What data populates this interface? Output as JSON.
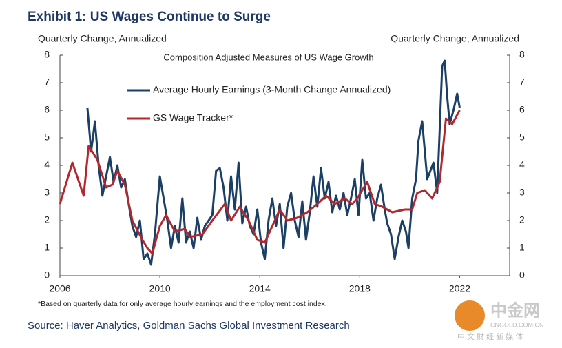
{
  "chart_data": {
    "type": "line",
    "title": "Exhibit 1: US Wages Continue to Surge",
    "subtitle": "Composition Adjusted Measures of US Wage Growth",
    "y_label": "Quarterly Change, Annualized",
    "y2_label": "Quarterly Change, Annualized",
    "footnote": "*Based on quarterly data for only average hourly earnings and the employment cost index.",
    "source": "Source: Haver Analytics, Goldman Sachs Global Investment Research",
    "watermark": [
      "中金网",
      "CNGOLD.COM.CN",
      "中 文 财 经 新 媒 体"
    ],
    "xlim": [
      2006,
      2024
    ],
    "xticks": [
      2006,
      2010,
      2014,
      2018,
      2022
    ],
    "ylim": [
      0,
      8
    ],
    "yticks": [
      0,
      1,
      2,
      3,
      4,
      5,
      6,
      7,
      8
    ],
    "y2lim": [
      0,
      8
    ],
    "y2ticks": [
      0,
      1,
      2,
      3,
      4,
      5,
      6,
      7,
      8
    ],
    "series": [
      {
        "name": "Average Hourly Earnings (3-Month Change Annualized)",
        "color": "#1c3f66",
        "x": [
          2007.1,
          2007.25,
          2007.4,
          2007.55,
          2007.7,
          2007.85,
          2008.0,
          2008.15,
          2008.3,
          2008.45,
          2008.6,
          2008.75,
          2008.9,
          2009.05,
          2009.2,
          2009.35,
          2009.5,
          2009.65,
          2009.8,
          2010.0,
          2010.15,
          2010.3,
          2010.45,
          2010.6,
          2010.75,
          2010.9,
          2011.05,
          2011.2,
          2011.35,
          2011.5,
          2011.65,
          2011.8,
          2011.95,
          2012.1,
          2012.25,
          2012.4,
          2012.55,
          2012.7,
          2012.85,
          2013.0,
          2013.15,
          2013.3,
          2013.45,
          2013.6,
          2013.75,
          2013.9,
          2014.05,
          2014.2,
          2014.35,
          2014.5,
          2014.65,
          2014.8,
          2014.95,
          2015.1,
          2015.25,
          2015.4,
          2015.55,
          2015.7,
          2015.85,
          2016.0,
          2016.15,
          2016.3,
          2016.45,
          2016.6,
          2016.75,
          2016.9,
          2017.05,
          2017.2,
          2017.35,
          2017.5,
          2017.65,
          2017.8,
          2017.95,
          2018.1,
          2018.25,
          2018.4,
          2018.55,
          2018.7,
          2018.85,
          2019.0,
          2019.1,
          2019.25,
          2019.4,
          2019.55,
          2019.7,
          2019.85,
          2019.95,
          2020.1,
          2020.25,
          2020.35,
          2020.5,
          2020.7,
          2020.95,
          2021.1,
          2021.3,
          2021.4,
          2021.5,
          2021.6,
          2021.75,
          2021.9,
          2022.0
        ],
        "values": [
          6.1,
          4.5,
          5.6,
          4.0,
          2.9,
          3.6,
          4.3,
          3.4,
          4.0,
          3.2,
          3.5,
          2.6,
          1.8,
          1.4,
          2.0,
          0.6,
          0.8,
          0.4,
          1.5,
          3.6,
          2.8,
          2.0,
          1.0,
          1.8,
          1.2,
          2.8,
          1.2,
          1.6,
          1.0,
          2.1,
          1.3,
          1.8,
          2.0,
          2.2,
          3.8,
          3.9,
          3.2,
          2.0,
          3.6,
          2.4,
          4.1,
          1.9,
          2.5,
          1.8,
          1.5,
          2.4,
          1.2,
          0.6,
          2.0,
          2.8,
          1.8,
          2.6,
          1.0,
          2.5,
          3.0,
          2.0,
          1.4,
          2.7,
          1.3,
          2.3,
          3.6,
          2.5,
          3.9,
          2.8,
          3.4,
          2.3,
          2.9,
          2.4,
          3.0,
          2.2,
          2.8,
          3.5,
          2.2,
          4.2,
          2.8,
          3.0,
          2.0,
          2.8,
          3.3,
          2.4,
          1.9,
          1.5,
          0.6,
          1.4,
          2.0,
          1.6,
          1.0,
          2.8,
          3.5,
          4.9,
          5.6,
          3.5,
          4.1,
          3.0,
          7.6,
          7.8,
          6.5,
          5.5,
          6.0,
          6.6,
          6.1
        ]
      },
      {
        "name": "GS Wage Tracker*",
        "color": "#b3282d",
        "x": [
          2006.0,
          2006.5,
          2006.95,
          2007.15,
          2007.5,
          2007.85,
          2008.1,
          2008.3,
          2008.6,
          2008.9,
          2009.3,
          2009.5,
          2009.7,
          2010.0,
          2010.25,
          2010.6,
          2011.0,
          2011.2,
          2011.7,
          2012.1,
          2012.6,
          2012.85,
          2013.2,
          2013.55,
          2013.9,
          2014.2,
          2014.5,
          2014.8,
          2015.1,
          2015.5,
          2015.9,
          2016.3,
          2016.65,
          2017.0,
          2017.4,
          2017.7,
          2017.9,
          2018.3,
          2018.6,
          2018.9,
          2019.3,
          2019.8,
          2020.1,
          2020.3,
          2020.6,
          2020.9,
          2021.2,
          2021.45,
          2021.7,
          2022.0
        ],
        "values": [
          2.6,
          4.1,
          2.9,
          4.7,
          4.2,
          3.2,
          3.3,
          3.8,
          3.3,
          2.0,
          1.3,
          1.0,
          0.8,
          1.8,
          2.2,
          1.6,
          1.7,
          1.4,
          1.5,
          2.0,
          2.6,
          2.0,
          2.5,
          2.0,
          1.3,
          1.2,
          1.8,
          2.4,
          2.0,
          2.1,
          2.3,
          2.6,
          2.9,
          2.6,
          2.8,
          2.6,
          2.8,
          3.4,
          2.6,
          2.5,
          2.3,
          2.4,
          2.4,
          3.0,
          3.1,
          2.8,
          3.4,
          5.7,
          5.5,
          6.0
        ]
      }
    ]
  }
}
